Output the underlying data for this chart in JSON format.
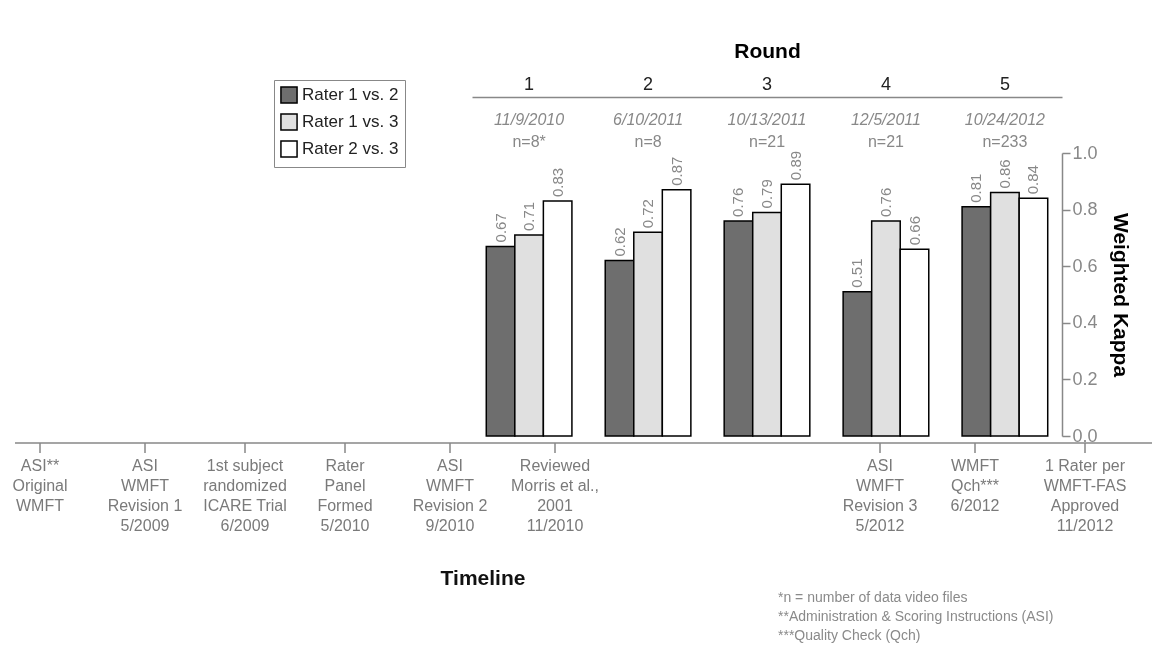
{
  "chart_data": {
    "type": "bar",
    "xlabel": "Round",
    "ylabel": "Weighted Kappa",
    "categories": [
      "1",
      "2",
      "3",
      "4",
      "5"
    ],
    "series": [
      {
        "name": "Rater 1 vs. 2",
        "color": "#6e6e6e",
        "values": [
          0.67,
          0.62,
          0.76,
          0.51,
          0.81
        ]
      },
      {
        "name": "Rater 1 vs. 3",
        "color": "#e0e0e0",
        "values": [
          0.71,
          0.72,
          0.79,
          0.76,
          0.86
        ]
      },
      {
        "name": "Rater 2 vs. 3",
        "color": "#ffffff",
        "values": [
          0.83,
          0.87,
          0.89,
          0.66,
          0.84
        ]
      }
    ],
    "ylim": [
      0,
      1
    ],
    "yticks": [
      {
        "value": 0,
        "label": "0.0"
      },
      {
        "value": 0.2,
        "label": "0.2"
      },
      {
        "value": 0.4,
        "label": "0.4"
      },
      {
        "value": 0.6,
        "label": "0.6"
      },
      {
        "value": 0.8,
        "label": "0.8"
      },
      {
        "value": 1,
        "label": "1.0"
      }
    ],
    "data_labels": true,
    "legend": "top left",
    "grid": false,
    "annotations": [
      "11/9/2010",
      "n=8*",
      "6/10/2011",
      "n=8",
      "10/13/2011",
      "n=21",
      "12/5/2011",
      "n=21",
      "10/24/2012",
      "n=233",
      "ASI**\nOriginal\nWMFT",
      "ASI\nWMFT\nRevision 1\n5/2009",
      "1st subject\nrandomized\nICARE Trial\n6/2009",
      "Rater\nPanel\nFormed\n5/2010",
      "ASI\nWMFT\nRevision 2\n9/2010",
      "Reviewed\nMorris et al.,\n2001\n11/2010",
      "ASI\nWMFT\nRevision 3\n5/2012",
      "WMFT\nQch***\n6/2012",
      "1 Rater per\nWMFT-FAS\nApproved\n11/2012",
      "Timeline",
      "*n = number of data video files\n**Administration & Scoring Instructions (ASI)\n***Quality Check (Qch)"
    ]
  }
}
